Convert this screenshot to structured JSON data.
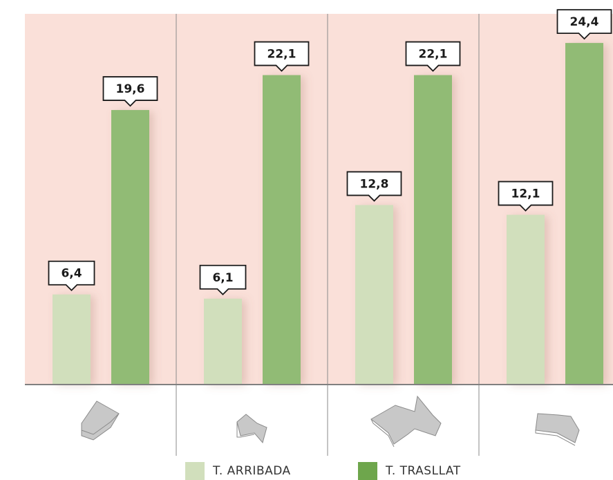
{
  "chart_data": {
    "type": "bar",
    "categories": [
      "",
      "",
      "",
      ""
    ],
    "series": [
      {
        "name": "T. ARRIBADA",
        "values": [
          6.4,
          6.1,
          12.8,
          12.1
        ],
        "labels": [
          "6,4",
          "6,1",
          "12,8",
          "12,1"
        ]
      },
      {
        "name": "T. TRASLLAT",
        "values": [
          19.6,
          22.1,
          22.1,
          24.4
        ],
        "labels": [
          "19,6",
          "22,1",
          "22,1",
          "24,4"
        ]
      }
    ],
    "ylim": [
      0,
      25
    ],
    "grid": false,
    "legend_position": "bottom",
    "title": "",
    "xlabel": "",
    "ylabel": ""
  },
  "colors": {
    "plot_background": "#fae0d9",
    "arribada": "#d1dfbc",
    "trasllat": "#91bb75",
    "divider": "#8a8a8a",
    "axis": "#808080",
    "icon": "#c8c8c8"
  },
  "icons": [
    "building-footprint-icon",
    "building-footprint-icon",
    "building-footprint-icon",
    "building-footprint-icon"
  ],
  "legend": {
    "arribada_label": "T. ARRIBADA",
    "trasllat_label": "T. TRASLLAT"
  }
}
